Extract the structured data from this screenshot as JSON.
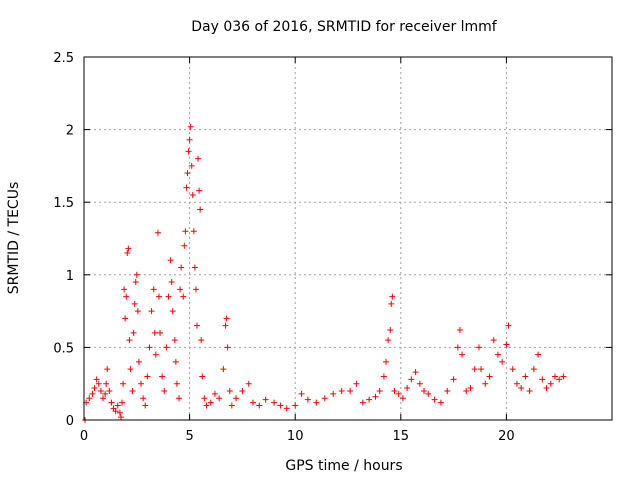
{
  "chart_data": {
    "type": "scatter",
    "title": "Day 036 of 2016, SRMTID for receiver lmmf",
    "xlabel": "GPS time / hours",
    "ylabel": "SRMTID / TECUs",
    "xlim": [
      0,
      25
    ],
    "ylim": [
      0,
      2.5
    ],
    "xticks": [
      0,
      5,
      10,
      15,
      20
    ],
    "xtick_labels": [
      "0",
      "5",
      "10",
      "15",
      "20"
    ],
    "yticks": [
      0,
      0.5,
      1,
      1.5,
      2,
      2.5
    ],
    "ytick_labels": [
      "0",
      "0.5",
      "1",
      "1.5",
      "2",
      "2.5"
    ],
    "grid": true,
    "marker": "+",
    "color": "#ff0000",
    "series": [
      {
        "name": "SRMTID",
        "points": [
          [
            0.05,
            0.0
          ],
          [
            0.1,
            0.12
          ],
          [
            0.25,
            0.15
          ],
          [
            0.4,
            0.18
          ],
          [
            0.5,
            0.22
          ],
          [
            0.6,
            0.28
          ],
          [
            0.7,
            0.25
          ],
          [
            0.8,
            0.2
          ],
          [
            0.9,
            0.15
          ],
          [
            1.0,
            0.18
          ],
          [
            1.05,
            0.25
          ],
          [
            1.1,
            0.35
          ],
          [
            1.2,
            0.2
          ],
          [
            1.3,
            0.12
          ],
          [
            1.4,
            0.08
          ],
          [
            1.5,
            0.06
          ],
          [
            1.6,
            0.1
          ],
          [
            1.7,
            0.05
          ],
          [
            1.75,
            0.02
          ],
          [
            1.8,
            0.12
          ],
          [
            1.85,
            0.25
          ],
          [
            1.9,
            0.9
          ],
          [
            1.95,
            0.7
          ],
          [
            2.0,
            0.85
          ],
          [
            2.05,
            1.15
          ],
          [
            2.1,
            1.18
          ],
          [
            2.15,
            0.55
          ],
          [
            2.2,
            0.35
          ],
          [
            2.3,
            0.2
          ],
          [
            2.35,
            0.6
          ],
          [
            2.4,
            0.8
          ],
          [
            2.45,
            0.95
          ],
          [
            2.5,
            1.0
          ],
          [
            2.55,
            0.75
          ],
          [
            2.6,
            0.4
          ],
          [
            2.7,
            0.25
          ],
          [
            2.8,
            0.15
          ],
          [
            2.9,
            0.1
          ],
          [
            3.0,
            0.3
          ],
          [
            3.1,
            0.5
          ],
          [
            3.2,
            0.75
          ],
          [
            3.3,
            0.9
          ],
          [
            3.35,
            0.6
          ],
          [
            3.4,
            0.45
          ],
          [
            3.5,
            1.29
          ],
          [
            3.55,
            0.85
          ],
          [
            3.6,
            0.6
          ],
          [
            3.7,
            0.3
          ],
          [
            3.8,
            0.2
          ],
          [
            3.9,
            0.5
          ],
          [
            4.0,
            0.85
          ],
          [
            4.1,
            1.1
          ],
          [
            4.15,
            0.95
          ],
          [
            4.2,
            0.75
          ],
          [
            4.3,
            0.55
          ],
          [
            4.35,
            0.4
          ],
          [
            4.4,
            0.25
          ],
          [
            4.5,
            0.15
          ],
          [
            4.55,
            0.9
          ],
          [
            4.6,
            1.05
          ],
          [
            4.7,
            0.85
          ],
          [
            4.75,
            1.2
          ],
          [
            4.8,
            1.3
          ],
          [
            4.85,
            1.6
          ],
          [
            4.9,
            1.7
          ],
          [
            4.95,
            1.85
          ],
          [
            5.0,
            1.93
          ],
          [
            5.05,
            2.02
          ],
          [
            5.1,
            1.75
          ],
          [
            5.15,
            1.55
          ],
          [
            5.2,
            1.3
          ],
          [
            5.25,
            1.05
          ],
          [
            5.3,
            0.9
          ],
          [
            5.35,
            0.65
          ],
          [
            5.4,
            1.8
          ],
          [
            5.45,
            1.58
          ],
          [
            5.5,
            1.45
          ],
          [
            5.55,
            0.55
          ],
          [
            5.6,
            0.3
          ],
          [
            5.7,
            0.15
          ],
          [
            5.8,
            0.1
          ],
          [
            6.0,
            0.12
          ],
          [
            6.2,
            0.18
          ],
          [
            6.4,
            0.15
          ],
          [
            6.6,
            0.35
          ],
          [
            6.7,
            0.65
          ],
          [
            6.75,
            0.7
          ],
          [
            6.8,
            0.5
          ],
          [
            6.9,
            0.2
          ],
          [
            7.0,
            0.1
          ],
          [
            7.2,
            0.15
          ],
          [
            7.5,
            0.2
          ],
          [
            7.8,
            0.25
          ],
          [
            8.0,
            0.12
          ],
          [
            8.3,
            0.1
          ],
          [
            8.6,
            0.14
          ],
          [
            9.0,
            0.12
          ],
          [
            9.3,
            0.1
          ],
          [
            9.6,
            0.08
          ],
          [
            10.0,
            0.1
          ],
          [
            10.3,
            0.18
          ],
          [
            10.6,
            0.14
          ],
          [
            11.0,
            0.12
          ],
          [
            11.4,
            0.15
          ],
          [
            11.8,
            0.18
          ],
          [
            12.2,
            0.2
          ],
          [
            12.6,
            0.2
          ],
          [
            12.9,
            0.25
          ],
          [
            13.2,
            0.12
          ],
          [
            13.5,
            0.14
          ],
          [
            13.8,
            0.16
          ],
          [
            14.0,
            0.2
          ],
          [
            14.2,
            0.3
          ],
          [
            14.3,
            0.4
          ],
          [
            14.4,
            0.55
          ],
          [
            14.5,
            0.62
          ],
          [
            14.55,
            0.8
          ],
          [
            14.6,
            0.85
          ],
          [
            14.7,
            0.2
          ],
          [
            14.9,
            0.18
          ],
          [
            15.1,
            0.15
          ],
          [
            15.3,
            0.22
          ],
          [
            15.5,
            0.28
          ],
          [
            15.7,
            0.33
          ],
          [
            15.9,
            0.25
          ],
          [
            16.1,
            0.2
          ],
          [
            16.3,
            0.18
          ],
          [
            16.6,
            0.14
          ],
          [
            16.9,
            0.12
          ],
          [
            17.2,
            0.2
          ],
          [
            17.5,
            0.28
          ],
          [
            17.7,
            0.5
          ],
          [
            17.8,
            0.62
          ],
          [
            17.9,
            0.45
          ],
          [
            18.1,
            0.2
          ],
          [
            18.3,
            0.22
          ],
          [
            18.5,
            0.35
          ],
          [
            18.7,
            0.5
          ],
          [
            18.8,
            0.35
          ],
          [
            19.0,
            0.25
          ],
          [
            19.2,
            0.3
          ],
          [
            19.4,
            0.55
          ],
          [
            19.6,
            0.45
          ],
          [
            19.8,
            0.4
          ],
          [
            20.0,
            0.52
          ],
          [
            20.1,
            0.65
          ],
          [
            20.3,
            0.35
          ],
          [
            20.5,
            0.25
          ],
          [
            20.7,
            0.22
          ],
          [
            20.9,
            0.3
          ],
          [
            21.1,
            0.2
          ],
          [
            21.3,
            0.35
          ],
          [
            21.5,
            0.45
          ],
          [
            21.7,
            0.28
          ],
          [
            21.9,
            0.22
          ],
          [
            22.1,
            0.25
          ],
          [
            22.3,
            0.3
          ],
          [
            22.5,
            0.28
          ],
          [
            22.7,
            0.3
          ]
        ]
      }
    ]
  }
}
